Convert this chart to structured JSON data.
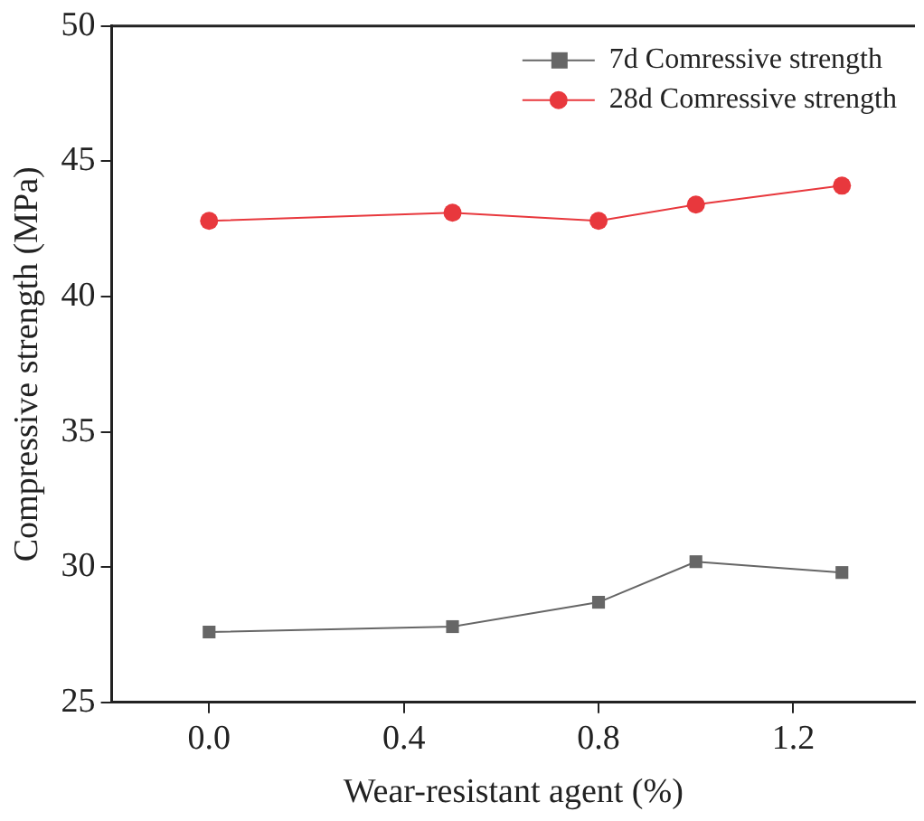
{
  "chart_data": {
    "type": "line",
    "xlabel": "Wear-resistant agent (%)",
    "ylabel": "Compressive strength (MPa)",
    "x": [
      0,
      0.5,
      0.8,
      1.0,
      1.3
    ],
    "series": [
      {
        "name": "7d Comressive strength",
        "color": "#666666",
        "marker": "square",
        "values": [
          27.6,
          27.8,
          28.7,
          30.2,
          29.8
        ]
      },
      {
        "name": "28d Comressive strength",
        "color": "#e8383d",
        "marker": "circle",
        "values": [
          42.8,
          43.1,
          42.8,
          43.4,
          44.1
        ]
      }
    ],
    "xlim": [
      -0.2,
      1.45
    ],
    "xticks": [
      {
        "value": 0,
        "label": "0.0"
      },
      0.4,
      0.8,
      1.2
    ],
    "ylim": [
      25,
      50
    ],
    "yticks": [
      25,
      30,
      35,
      40,
      45,
      50
    ],
    "grid": false,
    "legend": "top right",
    "line_style": "solid"
  }
}
